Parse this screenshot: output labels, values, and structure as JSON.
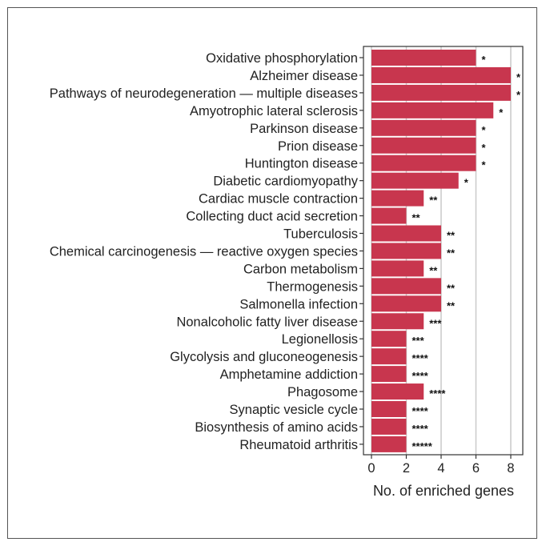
{
  "chart_data": {
    "type": "bar",
    "orientation": "horizontal",
    "xlabel": "No. of enriched genes",
    "xlim": [
      0,
      8.6
    ],
    "xticks": [
      0,
      2,
      4,
      6,
      8
    ],
    "grid": "vertical",
    "bar_color": "#C8364E",
    "categories": [
      "Oxidative phosphorylation",
      "Alzheimer disease",
      "Pathways of neurodegeneration — multiple diseases",
      "Amyotrophic lateral sclerosis",
      "Parkinson disease",
      "Prion disease",
      "Huntington disease",
      "Diabetic cardiomyopathy",
      "Cardiac muscle contraction",
      "Collecting duct acid secretion",
      "Tuberculosis",
      "Chemical carcinogenesis — reactive oxygen species",
      "Carbon metabolism",
      "Thermogenesis",
      "Salmonella infection",
      "Nonalcoholic fatty liver disease",
      "Legionellosis",
      "Glycolysis and gluconeogenesis",
      "Amphetamine addiction",
      "Phagosome",
      "Synaptic vesicle cycle",
      "Biosynthesis of amino acids",
      "Rheumatoid arthritis"
    ],
    "values": [
      6,
      8,
      8,
      7,
      6,
      6,
      6,
      5,
      3,
      2,
      4,
      4,
      3,
      4,
      4,
      3,
      2,
      2,
      2,
      3,
      2,
      2,
      2
    ],
    "significance": [
      "*",
      "*",
      "*",
      "*",
      "*",
      "*",
      "*",
      "*",
      "**",
      "**",
      "**",
      "**",
      "**",
      "**",
      "**",
      "***",
      "***",
      "****",
      "****",
      "****",
      "****",
      "****",
      "*****"
    ]
  }
}
